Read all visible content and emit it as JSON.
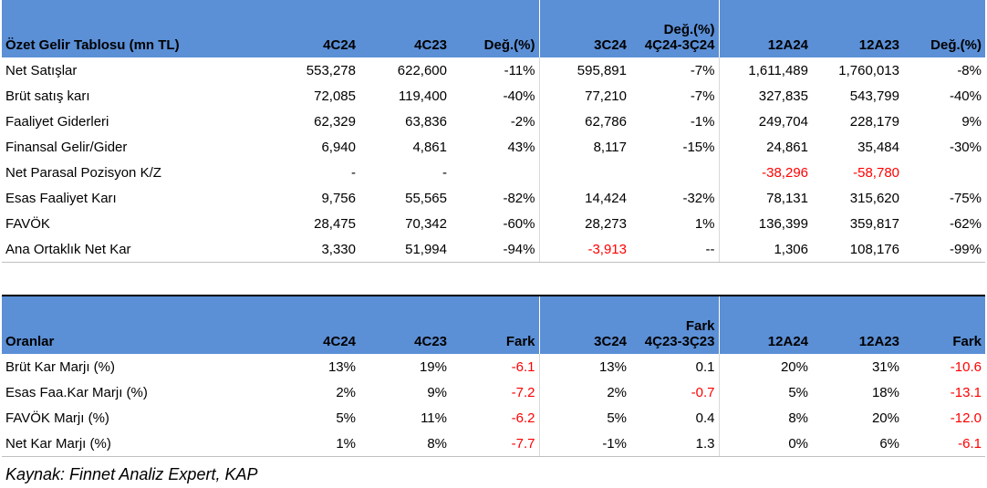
{
  "income": {
    "headers": [
      "Özet Gelir Tablosu (mn TL)",
      "4C24",
      "4C23",
      "Değ.(%)",
      "3C24",
      "Değ.(%) 4Ç24-3Ç24",
      "12A24",
      "12A23",
      "Değ.(%)"
    ],
    "header_line1": [
      "",
      "",
      "",
      "",
      "",
      "Değ.(%)",
      "",
      "",
      ""
    ],
    "header_line2": [
      "Özet Gelir Tablosu (mn TL)",
      "4C24",
      "4C23",
      "Değ.(%)",
      "3C24",
      "4Ç24-3Ç24",
      "12A24",
      "12A23",
      "Değ.(%)"
    ],
    "rows": [
      {
        "label": "Net Satışlar",
        "cells": [
          "553,278",
          "622,600",
          "-11%",
          "595,891",
          "-7%",
          "1,611,489",
          "1,760,013",
          "-8%"
        ],
        "neg": [
          false,
          false,
          false,
          false,
          false,
          false,
          false,
          false
        ]
      },
      {
        "label": "Brüt satış karı",
        "cells": [
          "72,085",
          "119,400",
          "-40%",
          "77,210",
          "-7%",
          "327,835",
          "543,799",
          "-40%"
        ],
        "neg": [
          false,
          false,
          false,
          false,
          false,
          false,
          false,
          false
        ]
      },
      {
        "label": "Faaliyet Giderleri",
        "cells": [
          "62,329",
          "63,836",
          "-2%",
          "62,786",
          "-1%",
          "249,704",
          "228,179",
          "9%"
        ],
        "neg": [
          false,
          false,
          false,
          false,
          false,
          false,
          false,
          false
        ]
      },
      {
        "label": "Finansal Gelir/Gider",
        "cells": [
          "6,940",
          "4,861",
          "43%",
          "8,117",
          "-15%",
          "24,861",
          "35,484",
          "-30%"
        ],
        "neg": [
          false,
          false,
          false,
          false,
          false,
          false,
          false,
          false
        ]
      },
      {
        "label": "Net Parasal Pozisyon K/Z",
        "cells": [
          "-",
          "-",
          "",
          "",
          "",
          "-38,296",
          "-58,780",
          ""
        ],
        "neg": [
          false,
          false,
          false,
          false,
          false,
          true,
          true,
          false
        ]
      },
      {
        "label": "Esas Faaliyet Karı",
        "cells": [
          "9,756",
          "55,565",
          "-82%",
          "14,424",
          "-32%",
          "78,131",
          "315,620",
          "-75%"
        ],
        "neg": [
          false,
          false,
          false,
          false,
          false,
          false,
          false,
          false
        ]
      },
      {
        "label": "FAVÖK",
        "cells": [
          "28,475",
          "70,342",
          "-60%",
          "28,273",
          "1%",
          "136,399",
          "359,817",
          "-62%"
        ],
        "neg": [
          false,
          false,
          false,
          false,
          false,
          false,
          false,
          false
        ]
      },
      {
        "label": "Ana Ortaklık Net Kar",
        "cells": [
          "3,330",
          "51,994",
          "-94%",
          "-3,913",
          "--",
          "1,306",
          "108,176",
          "-99%"
        ],
        "neg": [
          false,
          false,
          false,
          true,
          false,
          false,
          false,
          false
        ]
      }
    ]
  },
  "ratios": {
    "header_line1": [
      "",
      "",
      "",
      "",
      "",
      "Fark",
      "",
      "",
      ""
    ],
    "header_line2": [
      "Oranlar",
      "4C24",
      "4C23",
      "Fark",
      "3C24",
      "4Ç23-3Ç23",
      "12A24",
      "12A23",
      "Fark"
    ],
    "rows": [
      {
        "label": "Brüt Kar Marjı (%)",
        "cells": [
          "13%",
          "19%",
          "-6.1",
          "13%",
          "0.1",
          "20%",
          "31%",
          "-10.6"
        ],
        "neg": [
          false,
          false,
          true,
          false,
          false,
          false,
          false,
          true
        ]
      },
      {
        "label": "Esas Faa.Kar Marjı (%)",
        "cells": [
          "2%",
          "9%",
          "-7.2",
          "2%",
          "-0.7",
          "5%",
          "18%",
          "-13.1"
        ],
        "neg": [
          false,
          false,
          true,
          false,
          true,
          false,
          false,
          true
        ]
      },
      {
        "label": "FAVÖK Marjı (%)",
        "cells": [
          "5%",
          "11%",
          "-6.2",
          "5%",
          "0.4",
          "8%",
          "20%",
          "-12.0"
        ],
        "neg": [
          false,
          false,
          true,
          false,
          false,
          false,
          false,
          true
        ]
      },
      {
        "label": "Net Kar Marjı (%)",
        "cells": [
          "1%",
          "8%",
          "-7.7",
          "-1%",
          "1.3",
          "0%",
          "6%",
          "-6.1"
        ],
        "neg": [
          false,
          false,
          true,
          false,
          false,
          false,
          false,
          true
        ]
      }
    ]
  },
  "source": "Kaynak: Finnet Analiz Expert, KAP",
  "colors": {
    "header_bg": "#5b8fd6",
    "negative": "#ff0000"
  }
}
